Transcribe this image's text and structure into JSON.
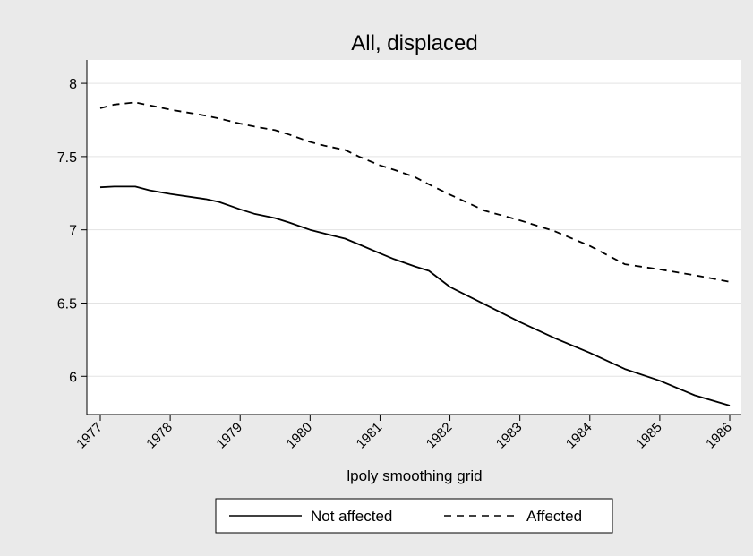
{
  "chart_data": {
    "type": "line",
    "title": "All, displaced",
    "xlabel": "lpoly smoothing grid",
    "ylabel": "",
    "xlim": [
      1977,
      1986
    ],
    "ylim": [
      5.8,
      8.08
    ],
    "x_ticks": [
      "1977",
      "1978",
      "1979",
      "1980",
      "1981",
      "1982",
      "1983",
      "1984",
      "1985",
      "1986"
    ],
    "y_ticks": [
      "6",
      "6.5",
      "7",
      "7.5",
      "8"
    ],
    "y_tick_values": [
      6,
      6.5,
      7,
      7.5,
      8
    ],
    "grid": true,
    "legend_position": "bottom",
    "series": [
      {
        "name": "Not affected",
        "style": "solid",
        "color": "#000000",
        "x": [
          1977,
          1977.2,
          1977.5,
          1977.7,
          1978,
          1978.5,
          1978.7,
          1979,
          1979.2,
          1979.5,
          1979.7,
          1980,
          1980.2,
          1980.5,
          1980.7,
          1981,
          1981.2,
          1981.5,
          1981.7,
          1982,
          1982.5,
          1983,
          1983.5,
          1984,
          1984.5,
          1985,
          1985.5,
          1986
        ],
        "values": [
          7.29,
          7.295,
          7.295,
          7.27,
          7.245,
          7.21,
          7.19,
          7.14,
          7.11,
          7.08,
          7.05,
          7.0,
          6.975,
          6.94,
          6.9,
          6.84,
          6.8,
          6.75,
          6.72,
          6.61,
          6.49,
          6.37,
          6.26,
          6.16,
          6.05,
          5.97,
          5.87,
          5.8
        ]
      },
      {
        "name": "Affected",
        "style": "dashed",
        "color": "#000000",
        "x": [
          1977,
          1977.2,
          1977.5,
          1977.7,
          1978,
          1978.5,
          1978.7,
          1979,
          1979.2,
          1979.5,
          1979.7,
          1980,
          1980.2,
          1980.5,
          1980.7,
          1981,
          1981.2,
          1981.5,
          1981.7,
          1982,
          1982.5,
          1983,
          1983.5,
          1984,
          1984.5,
          1985,
          1985.5,
          1986
        ],
        "values": [
          7.83,
          7.855,
          7.87,
          7.85,
          7.82,
          7.78,
          7.76,
          7.725,
          7.705,
          7.68,
          7.65,
          7.6,
          7.575,
          7.545,
          7.5,
          7.44,
          7.41,
          7.36,
          7.31,
          7.24,
          7.13,
          7.065,
          6.99,
          6.89,
          6.765,
          6.73,
          6.69,
          6.645
        ]
      }
    ]
  }
}
